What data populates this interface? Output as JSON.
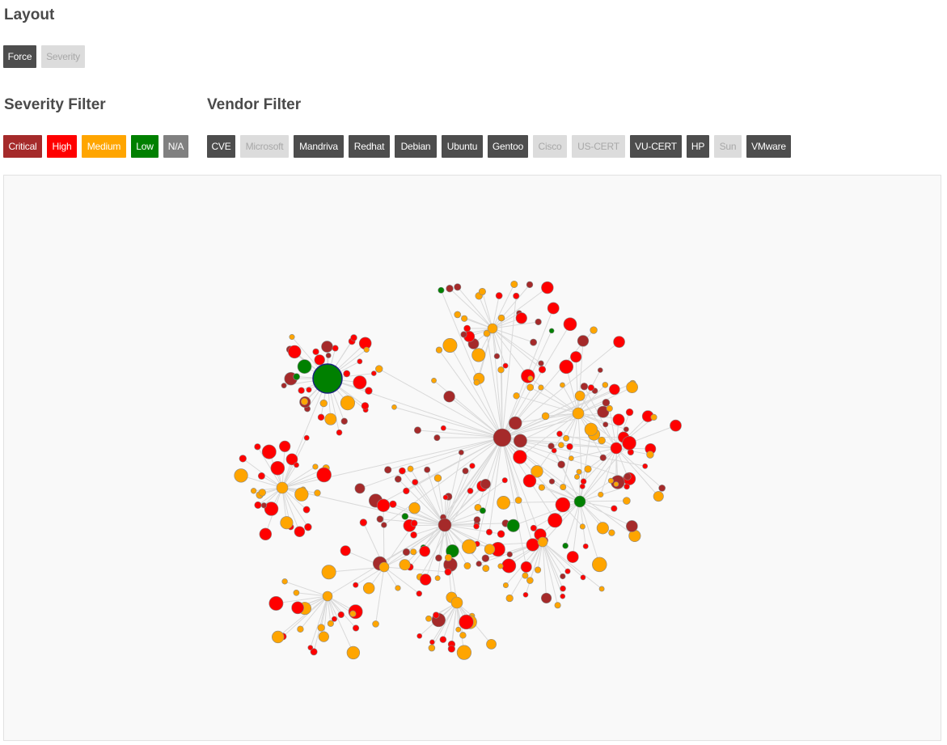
{
  "layout": {
    "heading": "Layout",
    "buttons": [
      {
        "label": "Force",
        "active": true
      },
      {
        "label": "Severity",
        "active": false
      }
    ]
  },
  "severity_filter": {
    "heading": "Severity Filter",
    "buttons": [
      {
        "label": "Critical",
        "color": "#a52a2a"
      },
      {
        "label": "High",
        "color": "#ff0000"
      },
      {
        "label": "Medium",
        "color": "#ffa500"
      },
      {
        "label": "Low",
        "color": "#008000"
      },
      {
        "label": "N/A",
        "color": "#808080"
      }
    ]
  },
  "vendor_filter": {
    "heading": "Vendor Filter",
    "buttons": [
      {
        "label": "CVE",
        "active": true
      },
      {
        "label": "Microsoft",
        "active": false
      },
      {
        "label": "Mandriva",
        "active": true
      },
      {
        "label": "Redhat",
        "active": true
      },
      {
        "label": "Debian",
        "active": true
      },
      {
        "label": "Ubuntu",
        "active": true
      },
      {
        "label": "Gentoo",
        "active": true
      },
      {
        "label": "Cisco",
        "active": false
      },
      {
        "label": "US-CERT",
        "active": false
      },
      {
        "label": "VU-CERT",
        "active": true
      },
      {
        "label": "HP",
        "active": true
      },
      {
        "label": "Sun",
        "active": false
      },
      {
        "label": "VMware",
        "active": true
      }
    ]
  },
  "graph": {
    "background": "#f9f9f9",
    "link_color": "#d9d9d9",
    "node_stroke": "#888888",
    "selected_stroke": "#1a237e"
  }
}
